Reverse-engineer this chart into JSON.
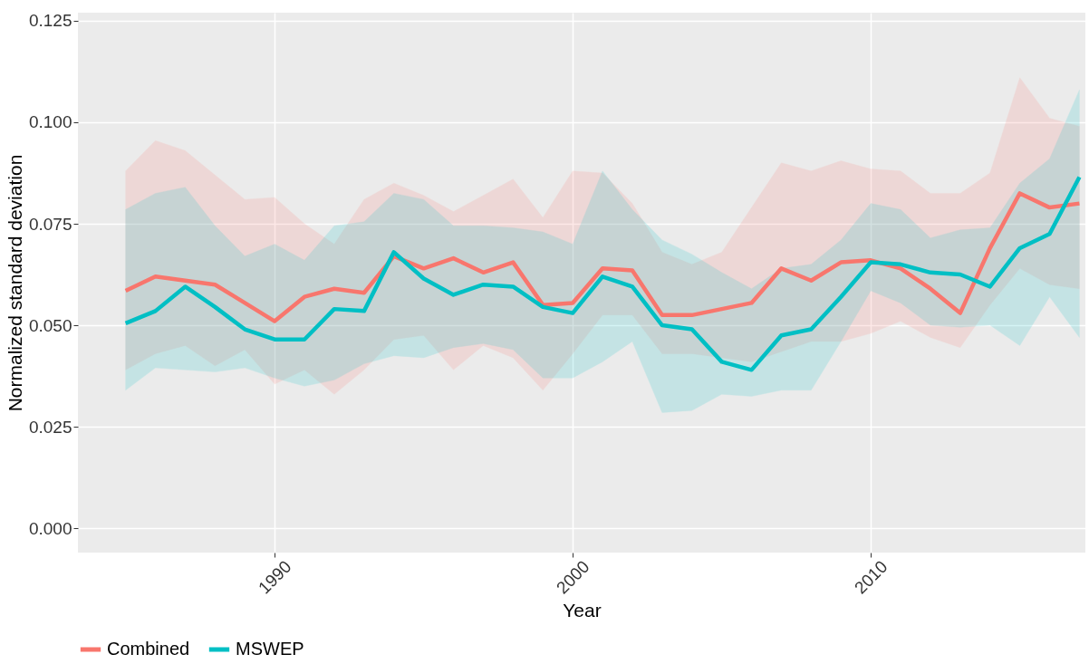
{
  "chart_data": {
    "type": "line",
    "xlabel": "Year",
    "ylabel": "Normalized standard deviation",
    "x": [
      1985,
      1986,
      1987,
      1988,
      1989,
      1990,
      1991,
      1992,
      1993,
      1994,
      1995,
      1996,
      1997,
      1998,
      1999,
      2000,
      2001,
      2002,
      2003,
      2004,
      2005,
      2006,
      2007,
      2008,
      2009,
      2010,
      2011,
      2012,
      2013,
      2014,
      2015,
      2016,
      2017
    ],
    "series": [
      {
        "name": "Combined",
        "color": "#f8766d",
        "values": [
          0.0585,
          0.062,
          0.061,
          0.06,
          0.0555,
          0.051,
          0.057,
          0.059,
          0.058,
          0.067,
          0.064,
          0.0665,
          0.063,
          0.0655,
          0.055,
          0.0555,
          0.064,
          0.0635,
          0.0525,
          0.0525,
          0.054,
          0.0555,
          0.064,
          0.061,
          0.0655,
          0.066,
          0.064,
          0.059,
          0.053,
          0.069,
          0.0825,
          0.079,
          0.08
        ],
        "upper": [
          0.088,
          0.0955,
          0.093,
          0.087,
          0.081,
          0.0815,
          0.075,
          0.07,
          0.081,
          0.085,
          0.082,
          0.078,
          0.082,
          0.086,
          0.0765,
          0.088,
          0.0875,
          0.08,
          0.068,
          0.065,
          0.068,
          0.079,
          0.09,
          0.088,
          0.0905,
          0.0885,
          0.088,
          0.0825,
          0.0825,
          0.0875,
          0.111,
          0.101,
          0.099
        ],
        "lower": [
          0.039,
          0.043,
          0.045,
          0.04,
          0.044,
          0.0355,
          0.039,
          0.033,
          0.039,
          0.0465,
          0.0475,
          0.039,
          0.045,
          0.042,
          0.034,
          0.043,
          0.0525,
          0.0525,
          0.043,
          0.043,
          0.042,
          0.041,
          0.0435,
          0.046,
          0.046,
          0.048,
          0.051,
          0.047,
          0.0445,
          0.055,
          0.064,
          0.06,
          0.059
        ]
      },
      {
        "name": "MSWEP",
        "color": "#00bfc4",
        "values": [
          0.0505,
          0.0535,
          0.0595,
          0.0545,
          0.049,
          0.0465,
          0.0465,
          0.054,
          0.0535,
          0.068,
          0.0615,
          0.0575,
          0.06,
          0.0595,
          0.0545,
          0.053,
          0.062,
          0.0595,
          0.05,
          0.049,
          0.041,
          0.039,
          0.0475,
          0.049,
          0.057,
          0.0655,
          0.065,
          0.063,
          0.0625,
          0.0595,
          0.069,
          0.0725,
          0.0865
        ],
        "upper": [
          0.0785,
          0.0825,
          0.084,
          0.0745,
          0.067,
          0.07,
          0.066,
          0.0745,
          0.0755,
          0.0825,
          0.081,
          0.0745,
          0.0745,
          0.074,
          0.073,
          0.07,
          0.088,
          0.0785,
          0.071,
          0.0675,
          0.063,
          0.059,
          0.064,
          0.065,
          0.071,
          0.08,
          0.0785,
          0.0715,
          0.0735,
          0.074,
          0.085,
          0.091,
          0.108
        ],
        "lower": [
          0.034,
          0.0395,
          0.039,
          0.0385,
          0.0395,
          0.037,
          0.035,
          0.0365,
          0.0405,
          0.0425,
          0.042,
          0.0445,
          0.0455,
          0.044,
          0.037,
          0.037,
          0.041,
          0.046,
          0.0285,
          0.029,
          0.033,
          0.0325,
          0.034,
          0.034,
          0.046,
          0.0585,
          0.0555,
          0.05,
          0.0495,
          0.05,
          0.045,
          0.057,
          0.047
        ]
      }
    ],
    "xlim": [
      1983.4,
      2017.2
    ],
    "xticks": [
      1990,
      2000,
      2010
    ],
    "ylim": [
      -0.006,
      0.127
    ],
    "yticks": [
      {
        "value": 0,
        "label": "0.000"
      },
      0.025,
      {
        "value": 0.05,
        "label": "0.050"
      },
      0.075,
      {
        "value": 0.1,
        "label": "0.100"
      },
      0.125
    ],
    "grid": true,
    "legend": "bottom"
  }
}
